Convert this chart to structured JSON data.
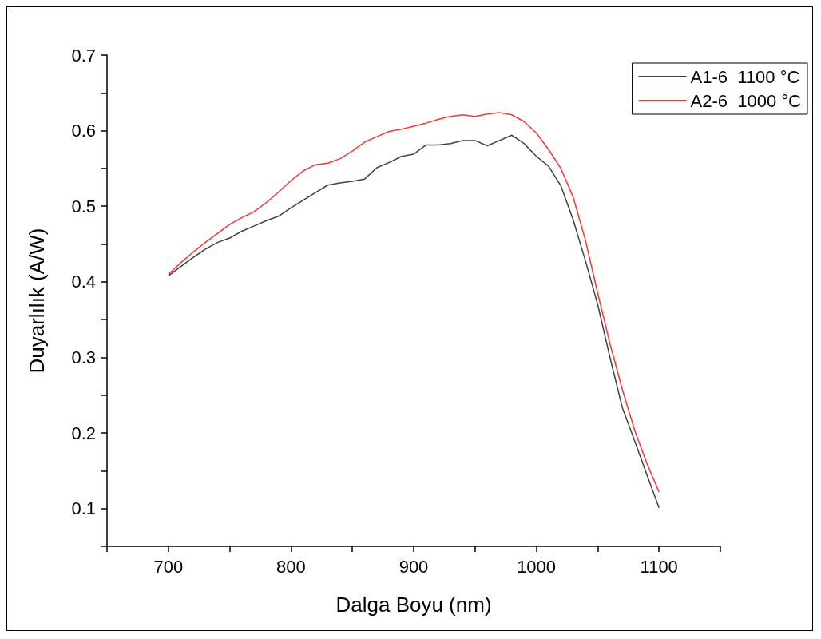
{
  "chart_data": {
    "type": "line",
    "xlabel": "Dalga Boyu (nm)",
    "ylabel": "Duyarlılık (A/W)",
    "xlim": [
      650,
      1150
    ],
    "xticks": [
      {
        "value": 650,
        "label": null
      },
      700,
      {
        "value": 750,
        "label": null
      },
      800,
      {
        "value": 850,
        "label": null
      },
      900,
      {
        "value": 950,
        "label": null
      },
      1000,
      {
        "value": 1050,
        "label": null
      },
      1100,
      {
        "value": 1150,
        "label": null
      }
    ],
    "ylim": [
      0.05,
      0.7
    ],
    "yticks": [
      {
        "value": 0.05,
        "label": null
      },
      0.1,
      {
        "value": 0.15,
        "label": null
      },
      0.2,
      {
        "value": 0.25,
        "label": null
      },
      0.3,
      {
        "value": 0.35,
        "label": null
      },
      0.4,
      {
        "value": 0.45,
        "label": null
      },
      0.5,
      {
        "value": 0.55,
        "label": null
      },
      0.6,
      {
        "value": 0.65,
        "label": null
      },
      0.7
    ],
    "x": [
      700,
      710,
      720,
      730,
      740,
      750,
      760,
      770,
      780,
      790,
      800,
      810,
      820,
      830,
      840,
      850,
      860,
      870,
      880,
      890,
      900,
      910,
      920,
      930,
      940,
      950,
      960,
      970,
      980,
      990,
      1000,
      1010,
      1020,
      1030,
      1040,
      1050,
      1060,
      1070,
      1080,
      1090,
      1100
    ],
    "series": [
      {
        "name": "A1-6  1100 °C",
        "color": "#404040",
        "values": [
          0.408,
          0.42,
          0.432,
          0.443,
          0.452,
          0.458,
          0.467,
          0.474,
          0.481,
          0.487,
          0.498,
          0.508,
          0.518,
          0.528,
          0.531,
          0.533,
          0.536,
          0.551,
          0.558,
          0.566,
          0.569,
          0.581,
          0.581,
          0.583,
          0.587,
          0.587,
          0.58,
          0.587,
          0.594,
          0.583,
          0.566,
          0.553,
          0.527,
          0.482,
          0.428,
          0.37,
          0.3,
          0.234,
          0.19,
          0.145,
          0.101
        ]
      },
      {
        "name": "A2-6  1000 °C",
        "color": "#ff3333",
        "values": [
          0.41,
          0.425,
          0.439,
          0.452,
          0.464,
          0.476,
          0.485,
          0.493,
          0.505,
          0.519,
          0.534,
          0.547,
          0.555,
          0.557,
          0.563,
          0.573,
          0.585,
          0.592,
          0.599,
          0.602,
          0.606,
          0.61,
          0.615,
          0.619,
          0.621,
          0.619,
          0.622,
          0.624,
          0.621,
          0.612,
          0.597,
          0.575,
          0.55,
          0.512,
          0.455,
          0.385,
          0.318,
          0.258,
          0.204,
          0.16,
          0.122
        ]
      }
    ],
    "legend": "top right",
    "grid": false,
    "marker": "none",
    "line_style": "solid"
  }
}
